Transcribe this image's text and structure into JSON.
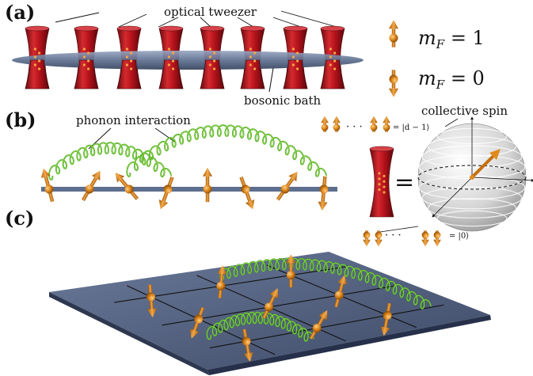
{
  "panels": {
    "a": "(a)",
    "b": "(b)",
    "c": "(c)"
  },
  "labels": {
    "optical_tweezer": "optical tweezer",
    "bosonic_bath": "bosonic bath",
    "phonon_interaction": "phonon interaction",
    "collective_spin": "collective spin",
    "equals": "="
  },
  "legend": {
    "up": {
      "symbol": "m",
      "sub": "F",
      "rhs": " = 1"
    },
    "down": {
      "symbol": "m",
      "sub": "F",
      "rhs": " = 0"
    }
  },
  "kets": {
    "top": "= |d − 1⟩",
    "bottom": "= |0⟩",
    "dots": "· · ·"
  },
  "colors": {
    "tweezer": "#b5121b",
    "bath": "#5d6f8f",
    "arrow": "#e08a1e",
    "spring": "#5fc21f",
    "plate": "#4f5f80",
    "sphere": "#d8d8d8"
  }
}
